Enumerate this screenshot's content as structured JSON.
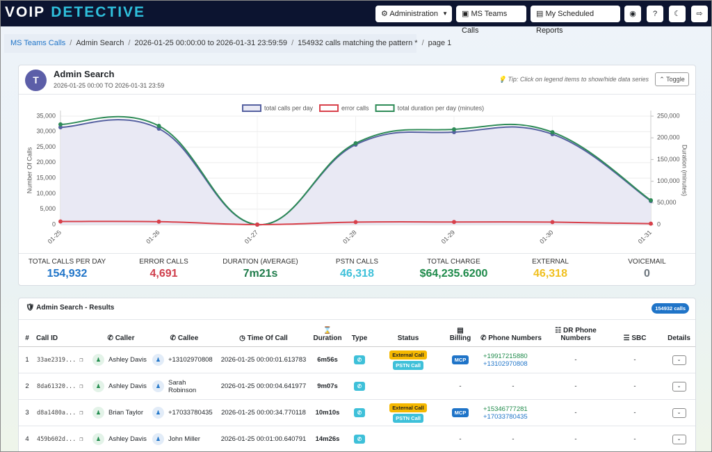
{
  "header": {
    "brand": [
      "VOIP",
      "DETECTIVE"
    ],
    "menu": [
      "Administration",
      "MS Teams Calls",
      "My Scheduled Reports"
    ]
  },
  "breadcrumb": [
    "MS Teams Calls",
    "Admin Search",
    "2026-01-25 00:00:00 to 2026-01-31 23:59:59",
    "154932 calls matching the pattern *",
    "page 1"
  ],
  "panel": {
    "title": "Admin Search",
    "subtitle": "2026-01-25 00:00 TO 2026-01-31 23:59",
    "tip": "Tip: Click on legend items to show/hide data series",
    "toggle": "Toggle"
  },
  "chart_data": {
    "type": "line",
    "categories": [
      "01-25",
      "01-26",
      "01-27",
      "01-28",
      "01-29",
      "01-30",
      "01-31"
    ],
    "series": [
      {
        "name": "total calls per day",
        "color": "#5560a0",
        "area": "#e9e9f4",
        "values": [
          31400,
          30960,
          0,
          25800,
          29840,
          29170,
          7630
        ]
      },
      {
        "name": "error calls",
        "color": "#d8404a",
        "values": [
          1000,
          950,
          0,
          800,
          850,
          800,
          300
        ]
      },
      {
        "name": "total duration per day (minutes)",
        "color": "#2e8b57",
        "axis": "y2",
        "values": [
          231000,
          227600,
          0,
          187500,
          219600,
          213000,
          56000
        ]
      }
    ],
    "ylabel": "Number Of Calls",
    "y2label": "Duration (minutes)",
    "ylim": [
      0,
      35000
    ],
    "yticks": [
      0,
      {
        "value": 5000,
        "label": "5,000"
      },
      {
        "value": 10000,
        "label": "10,000"
      },
      {
        "value": 15000,
        "label": "15,000"
      },
      {
        "value": 20000,
        "label": "20,000"
      },
      {
        "value": 25000,
        "label": "25,000"
      },
      {
        "value": 30000,
        "label": "30,000"
      },
      {
        "value": 35000,
        "label": "35,000"
      }
    ],
    "y2lim": [
      0,
      250000
    ],
    "y2ticks": [
      0,
      {
        "value": 50000,
        "label": "50,000"
      },
      {
        "value": 100000,
        "label": "100,000"
      },
      {
        "value": 150000,
        "label": "150,000"
      },
      {
        "value": 200000,
        "label": "200,000"
      },
      {
        "value": 250000,
        "label": "250,000"
      }
    ],
    "grid": true,
    "legend": "top"
  },
  "stats": [
    {
      "label": "TOTAL CALLS PER DAY",
      "value": "154,932",
      "color": "#1f74c8"
    },
    {
      "label": "ERROR CALLS",
      "value": "4,691",
      "color": "#cf3e4c"
    },
    {
      "label": "DURATION (AVERAGE)",
      "value": "7m21s",
      "color": "#1e7b4a"
    },
    {
      "label": "PSTN CALLS",
      "value": "46,318",
      "color": "#3ec0d9"
    },
    {
      "label": "TOTAL CHARGE",
      "value": "$64,235.6200",
      "color": "#1e8a4a"
    },
    {
      "label": "EXTERNAL",
      "value": "46,318",
      "color": "#f0c020"
    },
    {
      "label": "VOICEMAIL",
      "value": "0",
      "color": "#6c757d"
    }
  ],
  "results": {
    "title": "Admin Search - Results",
    "badge": "154932 calls",
    "columns": [
      "#",
      "Call ID",
      "Caller",
      "Callee",
      "Time Of Call",
      "Duration",
      "Type",
      "Status",
      "Billing",
      "Phone Numbers",
      "DR Phone Numbers",
      "SBC",
      "Details"
    ],
    "rows": [
      {
        "num": "1",
        "call_id": "33ae2319...",
        "caller": "Ashley Davis",
        "callee": "+13102970808",
        "time": "2026-01-25 00:00:01.613783",
        "duration": "6m56s",
        "status": [
          "External Call",
          "PSTN Call"
        ],
        "billing": "MCP",
        "phones": [
          "+19917215880",
          "+13102970808"
        ],
        "dr": "-",
        "sbc": "-"
      },
      {
        "num": "2",
        "call_id": "8da61320...",
        "caller": "Ashley Davis",
        "callee": "Sarah Robinson",
        "time": "2026-01-25 00:00:04.641977",
        "duration": "9m07s",
        "status": [],
        "billing": "-",
        "phones": [
          "-"
        ],
        "dr": "-",
        "sbc": "-"
      },
      {
        "num": "3",
        "call_id": "d8a1480a...",
        "caller": "Brian Taylor",
        "callee": "+17033780435",
        "time": "2026-01-25 00:00:34.770118",
        "duration": "10m10s",
        "status": [
          "External Call",
          "PSTN Call"
        ],
        "billing": "MCP",
        "phones": [
          "+15346777281",
          "+17033780435"
        ],
        "dr": "-",
        "sbc": "-"
      },
      {
        "num": "4",
        "call_id": "459b602d...",
        "caller": "Ashley Davis",
        "callee": "John Miller",
        "time": "2026-01-25 00:01:00.640791",
        "duration": "14m26s",
        "status": [],
        "billing": "-",
        "phones": [
          "-"
        ],
        "dr": "-",
        "sbc": "-"
      }
    ]
  }
}
